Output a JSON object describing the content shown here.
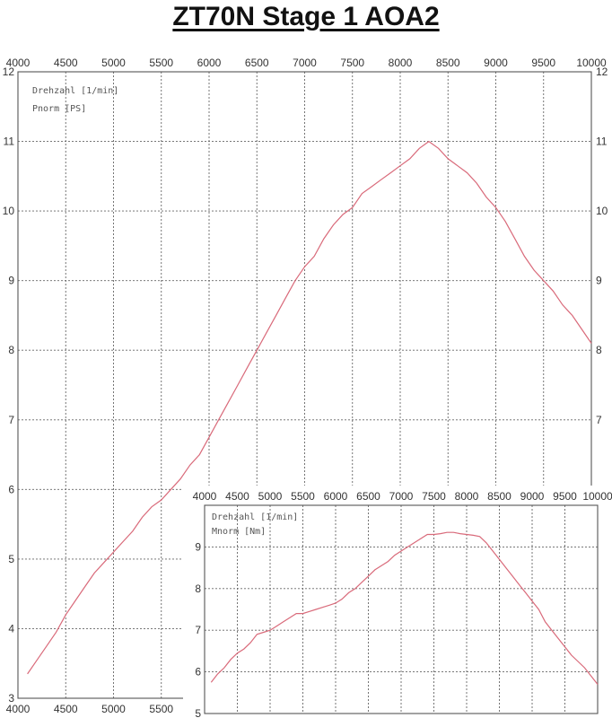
{
  "title": "ZT70N  Stage 1  AOA2",
  "chart_data": [
    {
      "type": "line",
      "legend": [
        "Drehzahl [1/min]",
        "Pnorm [PS]"
      ],
      "xlim": [
        4000,
        10000
      ],
      "ylim": [
        3,
        12
      ],
      "x_ticks": [
        4000,
        4500,
        5000,
        5500,
        6000,
        6500,
        7000,
        7500,
        8000,
        8500,
        9000,
        9500,
        10000
      ],
      "y_ticks": [
        3,
        4,
        5,
        6,
        7,
        8,
        9,
        10,
        11,
        12
      ],
      "grid": true,
      "series": [
        {
          "x": [
            4100,
            4200,
            4300,
            4400,
            4500,
            4600,
            4700,
            4800,
            4900,
            5000,
            5100,
            5200,
            5300,
            5400,
            5500,
            5600,
            5700,
            5800,
            5900,
            6000,
            6100,
            6200,
            6300,
            6400,
            6500,
            6600,
            6700,
            6800,
            6900,
            7000,
            7100,
            7200,
            7300,
            7400,
            7500,
            7600,
            7700,
            7800,
            7900,
            8000,
            8100,
            8200,
            8300,
            8400,
            8500,
            8600,
            8700,
            8800,
            8900,
            9000,
            9100,
            9200,
            9300,
            9400,
            9500,
            9600,
            9700,
            9800,
            9900,
            10000
          ],
          "y": [
            3.35,
            3.55,
            3.75,
            3.95,
            4.2,
            4.4,
            4.6,
            4.8,
            4.95,
            5.1,
            5.25,
            5.4,
            5.6,
            5.75,
            5.85,
            6.0,
            6.15,
            6.35,
            6.5,
            6.75,
            7.0,
            7.25,
            7.5,
            7.75,
            8.0,
            8.25,
            8.5,
            8.75,
            9.0,
            9.2,
            9.35,
            9.6,
            9.8,
            9.95,
            10.05,
            10.25,
            10.35,
            10.45,
            10.55,
            10.65,
            10.75,
            10.9,
            11.0,
            10.9,
            10.75,
            10.65,
            10.55,
            10.4,
            10.2,
            10.05,
            9.85,
            9.6,
            9.35,
            9.15,
            9.0,
            8.85,
            8.65,
            8.5,
            8.3,
            8.1
          ]
        }
      ]
    },
    {
      "type": "line",
      "legend": [
        "Drehzahl [1/min]",
        "Mnorm [Nm]"
      ],
      "xlim": [
        4000,
        10000
      ],
      "ylim": [
        5,
        10
      ],
      "x_ticks": [
        4000,
        4500,
        5000,
        5500,
        6000,
        6500,
        7000,
        7500,
        8000,
        8500,
        9000,
        9500,
        10000
      ],
      "y_ticks": [
        5,
        6,
        7,
        8,
        9
      ],
      "grid": true,
      "series": [
        {
          "x": [
            4100,
            4200,
            4300,
            4400,
            4500,
            4600,
            4700,
            4800,
            4900,
            5000,
            5100,
            5200,
            5300,
            5400,
            5500,
            5600,
            5700,
            5800,
            5900,
            6000,
            6100,
            6200,
            6300,
            6400,
            6500,
            6600,
            6700,
            6800,
            6900,
            7000,
            7100,
            7200,
            7300,
            7400,
            7500,
            7600,
            7700,
            7800,
            7900,
            8000,
            8100,
            8200,
            8300,
            8400,
            8500,
            8600,
            8700,
            8800,
            8900,
            9000,
            9100,
            9200,
            9300,
            9400,
            9500,
            9600,
            9700,
            9800,
            9900,
            10000
          ],
          "y": [
            5.75,
            5.95,
            6.1,
            6.3,
            6.45,
            6.55,
            6.7,
            6.9,
            6.95,
            7.0,
            7.1,
            7.2,
            7.3,
            7.4,
            7.4,
            7.45,
            7.5,
            7.55,
            7.6,
            7.65,
            7.75,
            7.9,
            8.0,
            8.15,
            8.3,
            8.45,
            8.55,
            8.65,
            8.8,
            8.9,
            9.0,
            9.1,
            9.2,
            9.3,
            9.3,
            9.32,
            9.35,
            9.35,
            9.32,
            9.3,
            9.28,
            9.25,
            9.1,
            8.9,
            8.7,
            8.5,
            8.3,
            8.1,
            7.9,
            7.7,
            7.5,
            7.2,
            7.0,
            6.8,
            6.6,
            6.4,
            6.25,
            6.1,
            5.9,
            5.7
          ]
        }
      ]
    }
  ]
}
